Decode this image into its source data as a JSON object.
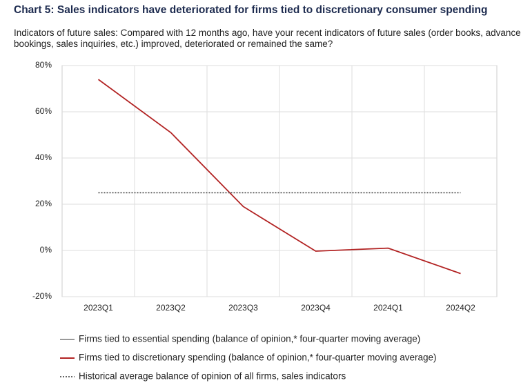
{
  "chart_data": {
    "type": "line",
    "title": "Chart 5: Sales indicators have deteriorated for firms tied to discretionary consumer spending",
    "subtitle": "Indicators of future sales: Compared with 12 months ago, have your recent indicators of future sales (order books, advance bookings, sales inquiries, etc.) improved, deteriorated or remained the same?",
    "categories": [
      "2023Q1",
      "2023Q2",
      "2023Q3",
      "2023Q4",
      "2024Q1",
      "2024Q2"
    ],
    "series": [
      {
        "name": "Firms tied to essential spending (balance of opinion,* four-quarter moving average)",
        "color": "#999999",
        "values": [
          null,
          null,
          null,
          null,
          null,
          null
        ]
      },
      {
        "name": "Firms tied to discretionary spending (balance of opinion,* four-quarter moving average)",
        "color": "#b22222",
        "values": [
          74,
          51,
          19,
          -0.3,
          1,
          -10
        ]
      },
      {
        "name": "Historical average balance of opinion of all firms, sales indicators",
        "color": "#666666",
        "dash": "dotted",
        "values": [
          25,
          25,
          25,
          25,
          25,
          25
        ]
      }
    ],
    "ylim": [
      -20,
      80
    ],
    "yticks": [
      {
        "value": -20,
        "label": "-20%"
      },
      {
        "value": 0,
        "label": "0%"
      },
      {
        "value": 20,
        "label": "20%"
      },
      {
        "value": 40,
        "label": "40%"
      },
      {
        "value": 60,
        "label": "60%"
      },
      {
        "value": 80,
        "label": "80%"
      }
    ],
    "grid": true
  }
}
